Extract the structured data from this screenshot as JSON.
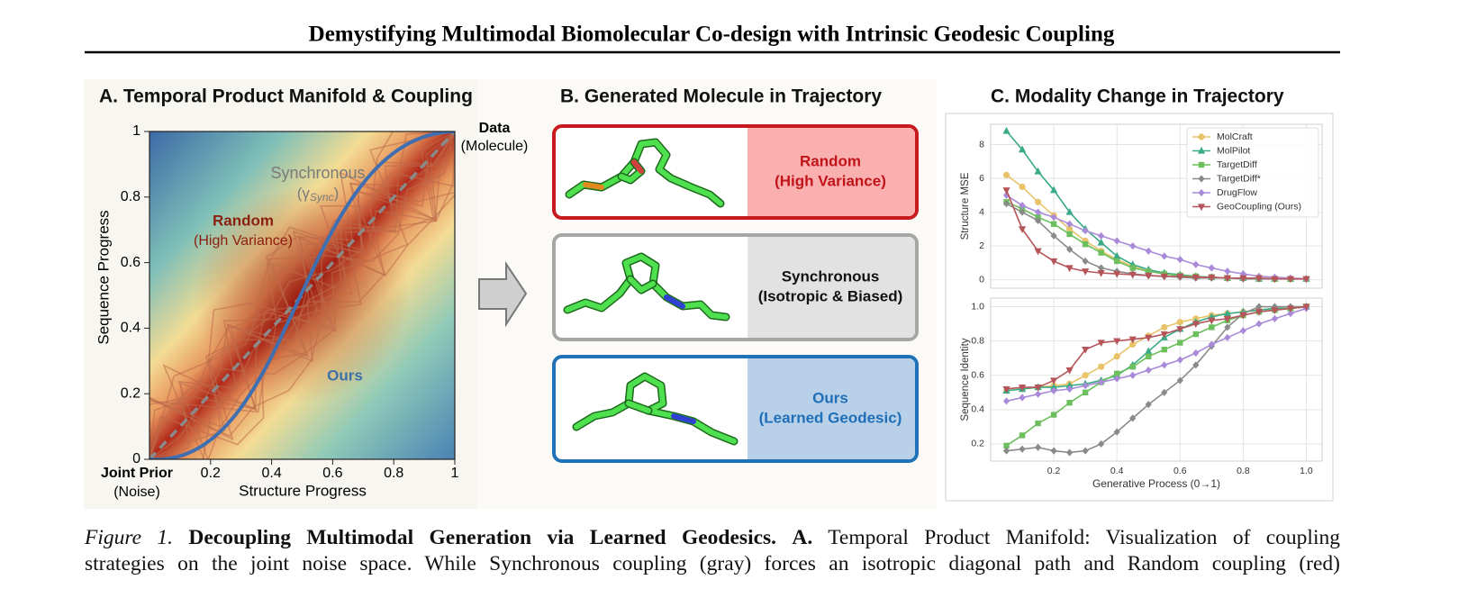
{
  "header": {
    "title": "Demystifying Multimodal Biomolecular Co-design with Intrinsic Geodesic Coupling"
  },
  "panel_a": {
    "title": "A. Temporal Product Manifold & Coupling",
    "xlabel": "Structure Progress",
    "ylabel": "Sequence Progress",
    "xlim": [
      0,
      1
    ],
    "ylim": [
      0,
      1
    ],
    "xticks": [
      0.2,
      0.4,
      0.6,
      0.8,
      1
    ],
    "yticks": [
      0,
      0.2,
      0.4,
      0.6,
      0.8,
      1
    ],
    "origin_label": "Joint Prior",
    "origin_sublabel": "(Noise)",
    "end_label": "Data",
    "end_sublabel": "(Molecule)",
    "synchronous_label": "Synchronous",
    "synchronous_symbol": {
      "open": "(γ",
      "sub": "Sync",
      "close": ")"
    },
    "random_label": "Random",
    "random_sublabel": "(High Variance)",
    "ours_label": "Ours"
  },
  "panel_b": {
    "title": "B. Generated Molecule in Trajectory",
    "boxes": [
      {
        "label": "Random",
        "sublabel": "(High Variance)"
      },
      {
        "label": "Synchronous",
        "sublabel": "(Isotropic & Biased)"
      },
      {
        "label": "Ours",
        "sublabel": "(Learned Geodesic)"
      }
    ]
  },
  "panel_c": {
    "title": "C. Modality Change in Trajectory"
  },
  "chart_data": [
    {
      "type": "line",
      "ylabel": "Structure MSE",
      "x": [
        0.05,
        0.1,
        0.15,
        0.2,
        0.25,
        0.3,
        0.35,
        0.4,
        0.45,
        0.5,
        0.55,
        0.6,
        0.65,
        0.7,
        0.75,
        0.8,
        0.85,
        0.9,
        0.95,
        1.0
      ],
      "xlim": [
        0,
        1.05
      ],
      "ylim": [
        -0.5,
        9.2
      ],
      "xticks": [
        0.2,
        0.4,
        0.6,
        0.8,
        1
      ],
      "show_xtick_labels": false,
      "yticks": [
        0,
        2,
        4,
        6,
        8
      ],
      "grid": true,
      "legend": "upper right",
      "series": [
        {
          "name": "MolCraft",
          "color": "#e8c36a",
          "marker": "circle",
          "values": [
            6.2,
            5.5,
            4.6,
            3.8,
            3.0,
            2.3,
            1.7,
            1.2,
            0.8,
            0.5,
            0.35,
            0.25,
            0.2,
            0.15,
            0.1,
            0.1,
            0.05,
            0.05,
            0.05,
            0.05
          ]
        },
        {
          "name": "MolPilot",
          "color": "#3aaa88",
          "marker": "triangle-up",
          "values": [
            8.8,
            7.7,
            6.4,
            5.3,
            4.0,
            3.0,
            2.2,
            1.4,
            0.9,
            0.6,
            0.4,
            0.3,
            0.2,
            0.15,
            0.1,
            0.1,
            0.05,
            0.05,
            0.05,
            0.05
          ]
        },
        {
          "name": "TargetDiff",
          "color": "#6cbf5c",
          "marker": "square",
          "values": [
            4.6,
            4.2,
            3.7,
            3.3,
            2.7,
            2.1,
            1.6,
            1.1,
            0.7,
            0.5,
            0.35,
            0.25,
            0.2,
            0.15,
            0.1,
            0.1,
            0.05,
            0.05,
            0.05,
            0.05
          ]
        },
        {
          "name": "TargetDiff*",
          "color": "#8a8a8a",
          "marker": "diamond",
          "values": [
            4.5,
            4.0,
            3.5,
            2.6,
            1.8,
            1.1,
            0.7,
            0.5,
            0.35,
            0.25,
            0.2,
            0.15,
            0.1,
            0.1,
            0.1,
            0.05,
            0.05,
            0.05,
            0.05,
            0.05
          ]
        },
        {
          "name": "DrugFlow",
          "color": "#a98ad8",
          "marker": "diamond",
          "values": [
            5.0,
            4.4,
            4.0,
            3.7,
            3.3,
            2.9,
            2.6,
            2.3,
            2.0,
            1.7,
            1.4,
            1.2,
            0.9,
            0.7,
            0.5,
            0.35,
            0.2,
            0.15,
            0.1,
            0.05
          ]
        },
        {
          "name": "GeoCoupling (Ours)",
          "color": "#b5555a",
          "marker": "triangle-down",
          "values": [
            5.3,
            3.0,
            1.7,
            1.1,
            0.7,
            0.5,
            0.4,
            0.35,
            0.3,
            0.25,
            0.2,
            0.2,
            0.15,
            0.15,
            0.1,
            0.1,
            0.1,
            0.05,
            0.05,
            0.05
          ]
        }
      ]
    },
    {
      "type": "line",
      "ylabel": "Sequence Identity",
      "xlabel": "Generative Process (0→1)",
      "x": [
        0.05,
        0.1,
        0.15,
        0.2,
        0.25,
        0.3,
        0.35,
        0.4,
        0.45,
        0.5,
        0.55,
        0.6,
        0.65,
        0.7,
        0.75,
        0.8,
        0.85,
        0.9,
        0.95,
        1.0
      ],
      "xlim": [
        0,
        1.05
      ],
      "ylim": [
        0.1,
        1.05
      ],
      "xticks": [
        0.2,
        0.4,
        0.6,
        0.8,
        {
          "value": 1,
          "label": "1.0"
        }
      ],
      "show_xtick_labels": true,
      "yticks": [
        0.2,
        0.4,
        0.6,
        0.8,
        {
          "value": 1,
          "label": "1.0"
        }
      ],
      "grid": true,
      "series": [
        {
          "color": "#e8c36a",
          "marker": "circle",
          "values": [
            0.51,
            0.52,
            0.53,
            0.54,
            0.55,
            0.6,
            0.65,
            0.71,
            0.78,
            0.83,
            0.88,
            0.91,
            0.93,
            0.95,
            0.96,
            0.97,
            0.98,
            0.99,
            0.99,
            1.0
          ]
        },
        {
          "color": "#3aaa88",
          "marker": "triangle-up",
          "values": [
            0.51,
            0.52,
            0.53,
            0.53,
            0.54,
            0.55,
            0.57,
            0.6,
            0.66,
            0.74,
            0.82,
            0.87,
            0.91,
            0.94,
            0.96,
            0.97,
            0.98,
            0.99,
            0.99,
            1.0
          ]
        },
        {
          "color": "#6cbf5c",
          "marker": "square",
          "values": [
            0.19,
            0.25,
            0.32,
            0.37,
            0.44,
            0.5,
            0.56,
            0.61,
            0.65,
            0.71,
            0.75,
            0.79,
            0.84,
            0.88,
            0.92,
            0.95,
            0.97,
            0.98,
            0.99,
            1.0
          ]
        },
        {
          "color": "#8a8a8a",
          "marker": "diamond",
          "values": [
            0.16,
            0.17,
            0.18,
            0.16,
            0.15,
            0.16,
            0.2,
            0.27,
            0.35,
            0.43,
            0.5,
            0.57,
            0.66,
            0.77,
            0.88,
            0.96,
            1.0,
            1.0,
            1.0,
            1.0
          ]
        },
        {
          "color": "#a98ad8",
          "marker": "diamond",
          "values": [
            0.45,
            0.47,
            0.49,
            0.51,
            0.52,
            0.54,
            0.56,
            0.58,
            0.6,
            0.63,
            0.66,
            0.69,
            0.73,
            0.78,
            0.82,
            0.86,
            0.9,
            0.93,
            0.96,
            0.99
          ]
        },
        {
          "color": "#b5555a",
          "marker": "triangle-down",
          "values": [
            0.52,
            0.53,
            0.53,
            0.57,
            0.63,
            0.75,
            0.79,
            0.8,
            0.81,
            0.82,
            0.84,
            0.87,
            0.9,
            0.92,
            0.93,
            0.95,
            0.97,
            0.98,
            0.99,
            1.0
          ]
        }
      ]
    }
  ],
  "caption": {
    "figure_label": "Figure 1.",
    "bold_title": "Decoupling Multimodal Generation via Learned Geodesics.",
    "part_label": "A.",
    "line1_text": "Temporal Product Manifold: Visualization of coupling",
    "line2_text": "strategies on the joint noise space. While Synchronous coupling (gray) forces an isotropic diagonal path and Random coupling (red)"
  }
}
